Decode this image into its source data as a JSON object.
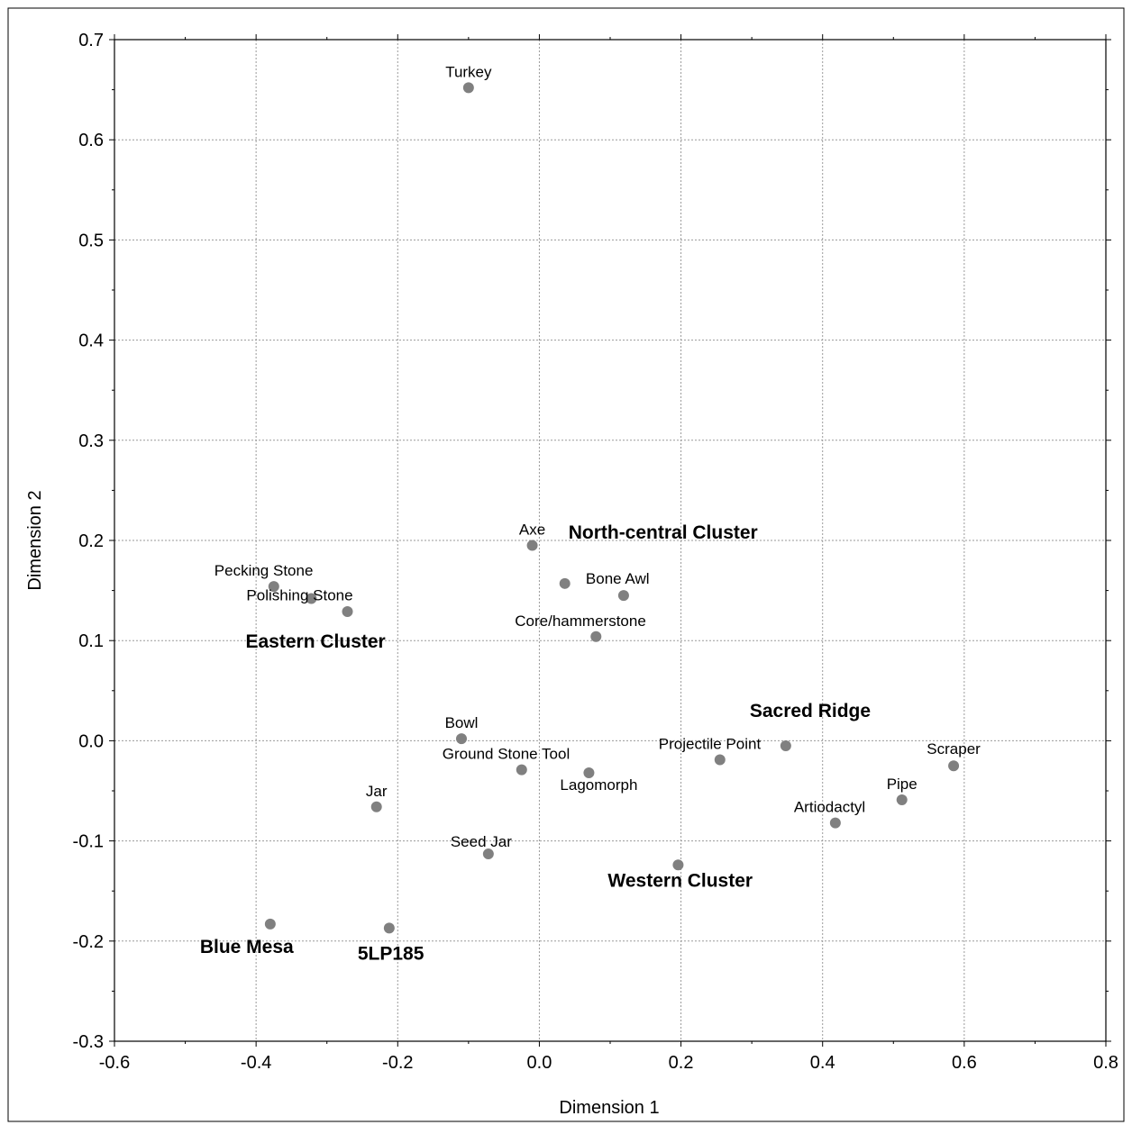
{
  "chart_data": {
    "type": "scatter",
    "title": "",
    "xlabel": "Dimension 1",
    "ylabel": "Dimension 2",
    "xlim": [
      -0.6,
      0.8
    ],
    "ylim": [
      -0.3,
      0.7
    ],
    "x_ticks": [
      "-0.6",
      "-0.4",
      "-0.2",
      "0.0",
      "0.2",
      "0.4",
      "0.6",
      "0.8"
    ],
    "y_ticks": [
      "-0.3",
      "-0.2",
      "-0.1",
      "0.0",
      "0.1",
      "0.2",
      "0.3",
      "0.4",
      "0.5",
      "0.6",
      "0.7"
    ],
    "grid": true,
    "marker_color": "#808080",
    "points": [
      {
        "label": "Turkey",
        "x": -0.1,
        "y": 0.652,
        "emphasis": false
      },
      {
        "label": "Axe",
        "x": -0.01,
        "y": 0.195,
        "emphasis": false
      },
      {
        "label": "North-central Cluster",
        "x": 0.036,
        "y": 0.157,
        "emphasis": true
      },
      {
        "label": "Bone Awl",
        "x": 0.119,
        "y": 0.145,
        "emphasis": false
      },
      {
        "label": "Pecking Stone",
        "x": -0.375,
        "y": 0.154,
        "emphasis": false
      },
      {
        "label": "Polishing Stone",
        "x": -0.322,
        "y": 0.142,
        "emphasis": false
      },
      {
        "label": "Eastern Cluster",
        "x": -0.271,
        "y": 0.129,
        "emphasis": true
      },
      {
        "label": "Core/hammerstone",
        "x": 0.08,
        "y": 0.104,
        "emphasis": false
      },
      {
        "label": "Bowl",
        "x": -0.11,
        "y": 0.002,
        "emphasis": false
      },
      {
        "label": "Sacred Ridge",
        "x": 0.348,
        "y": -0.005,
        "emphasis": true
      },
      {
        "label": "Projectile Point",
        "x": 0.255,
        "y": -0.019,
        "emphasis": false
      },
      {
        "label": "Scraper",
        "x": 0.585,
        "y": -0.025,
        "emphasis": false
      },
      {
        "label": "Ground Stone Tool",
        "x": -0.025,
        "y": -0.029,
        "emphasis": false
      },
      {
        "label": "Lagomorph",
        "x": 0.07,
        "y": -0.032,
        "emphasis": false
      },
      {
        "label": "Pipe",
        "x": 0.512,
        "y": -0.059,
        "emphasis": false
      },
      {
        "label": "Jar",
        "x": -0.23,
        "y": -0.066,
        "emphasis": false
      },
      {
        "label": "Artiodactyl",
        "x": 0.418,
        "y": -0.082,
        "emphasis": false
      },
      {
        "label": "Seed Jar",
        "x": -0.072,
        "y": -0.113,
        "emphasis": false
      },
      {
        "label": "Western Cluster",
        "x": 0.196,
        "y": -0.124,
        "emphasis": true
      },
      {
        "label": "Blue Mesa",
        "x": -0.38,
        "y": -0.183,
        "emphasis": true
      },
      {
        "label": "5LP185",
        "x": -0.212,
        "y": -0.187,
        "emphasis": true
      }
    ]
  }
}
